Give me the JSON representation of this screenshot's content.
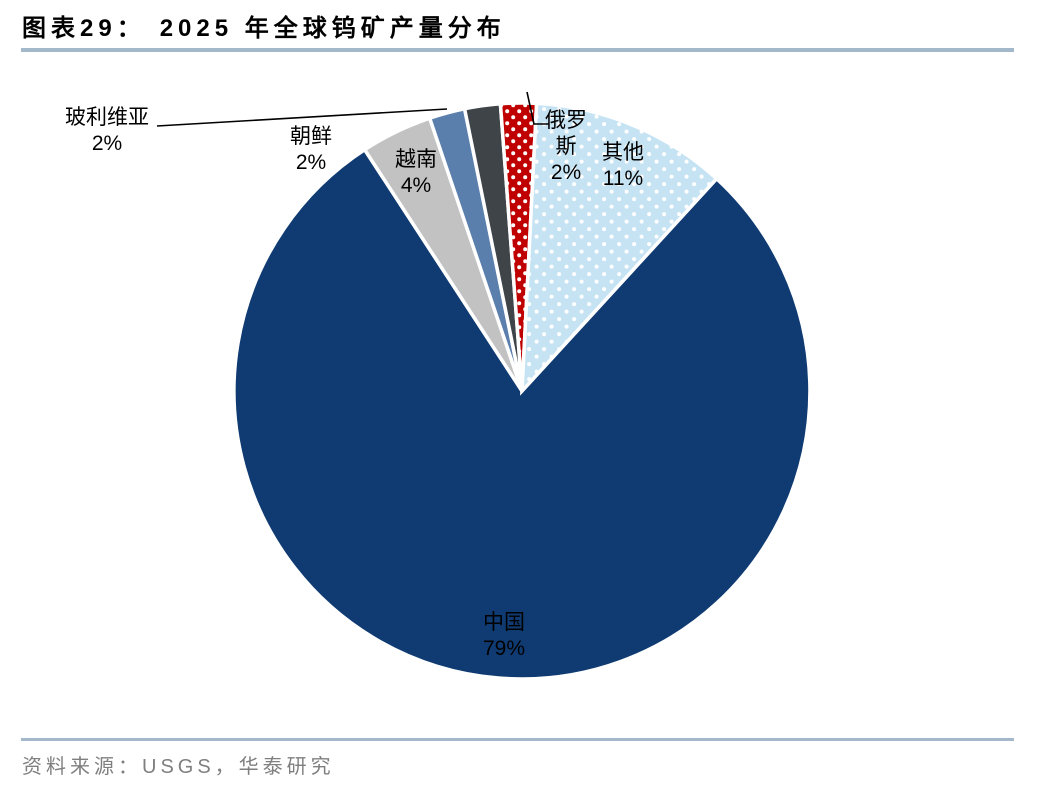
{
  "page": {
    "background": "#FFFFFF"
  },
  "header": {
    "figure_label": "图表29：",
    "title": "2025 年全球钨矿产量分布",
    "rule_color": "#A4B8CB"
  },
  "chart_data": {
    "type": "pie",
    "title": "2025 年全球钨矿产量分布",
    "value_unit": "percent",
    "direction": "clockwise",
    "start_angle_deg": 42.5,
    "legend": "none",
    "categories": [
      "中国",
      "越南",
      "玻利维亚",
      "朝鲜",
      "俄罗斯",
      "其他"
    ],
    "values": [
      79,
      4,
      2,
      2,
      2,
      11
    ],
    "slices": [
      {
        "id": "china",
        "name": "中国",
        "value": 79,
        "pct_label": "79%",
        "color": "#0F3B72",
        "pattern": "solid",
        "label_placement": "inside-bottom"
      },
      {
        "id": "vietnam",
        "name": "越南",
        "value": 4,
        "pct_label": "4%",
        "color": "#C2C2C2",
        "pattern": "solid",
        "label_placement": "inside"
      },
      {
        "id": "bolivia",
        "name": "玻利维亚",
        "value": 2,
        "pct_label": "2%",
        "color": "#5B7FAC",
        "pattern": "solid",
        "label_placement": "outside-left-with-leader"
      },
      {
        "id": "korea",
        "name": "朝鲜",
        "value": 2,
        "pct_label": "2%",
        "color": "#3F4449",
        "pattern": "solid",
        "label_placement": "outside-left"
      },
      {
        "id": "russia",
        "name": "俄罗斯",
        "value": 2,
        "pct_label": "2%",
        "color": "#C00000",
        "pattern": "white-dots",
        "dot_spacing": 12,
        "label_placement": "outside-top-with-leader"
      },
      {
        "id": "others",
        "name": "其他",
        "value": 11,
        "pct_label": "11%",
        "color": "#C6E3F3",
        "pattern": "white-dots",
        "dot_spacing": 15,
        "label_placement": "inside"
      }
    ]
  },
  "footer": {
    "source": "资料来源：USGS，华泰研究",
    "text_color": "#7F7F7F",
    "rule_color": "#A4B8CB"
  }
}
